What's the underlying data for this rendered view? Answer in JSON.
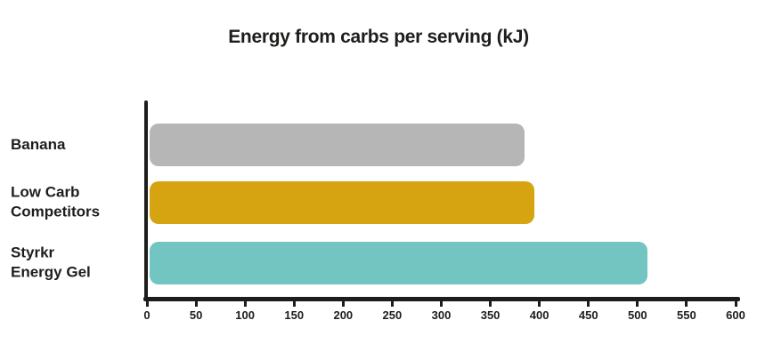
{
  "chart_data": {
    "type": "bar",
    "orientation": "horizontal",
    "title": "Energy from carbs per serving (kJ)",
    "categories": [
      "Banana",
      "Low Carb Competitors",
      "Styrkr Energy Gel"
    ],
    "category_lines": [
      [
        "Banana"
      ],
      [
        "Low Carb",
        "Competitors"
      ],
      [
        "Styrkr",
        "Energy Gel"
      ]
    ],
    "values": [
      385,
      395,
      510
    ],
    "unit": "kJ",
    "bar_colors": [
      "#b6b6b6",
      "#d6a411",
      "#72c5c1"
    ],
    "xlabel": "",
    "ylabel": "",
    "xlim": [
      0,
      600
    ],
    "x_ticks": [
      0,
      50,
      100,
      150,
      200,
      250,
      300,
      350,
      400,
      450,
      500,
      550,
      600
    ],
    "grid": false,
    "legend": false,
    "background": "#ffffff",
    "axis_color": "#1d1d1b",
    "text_color": "#1d1d1b"
  }
}
